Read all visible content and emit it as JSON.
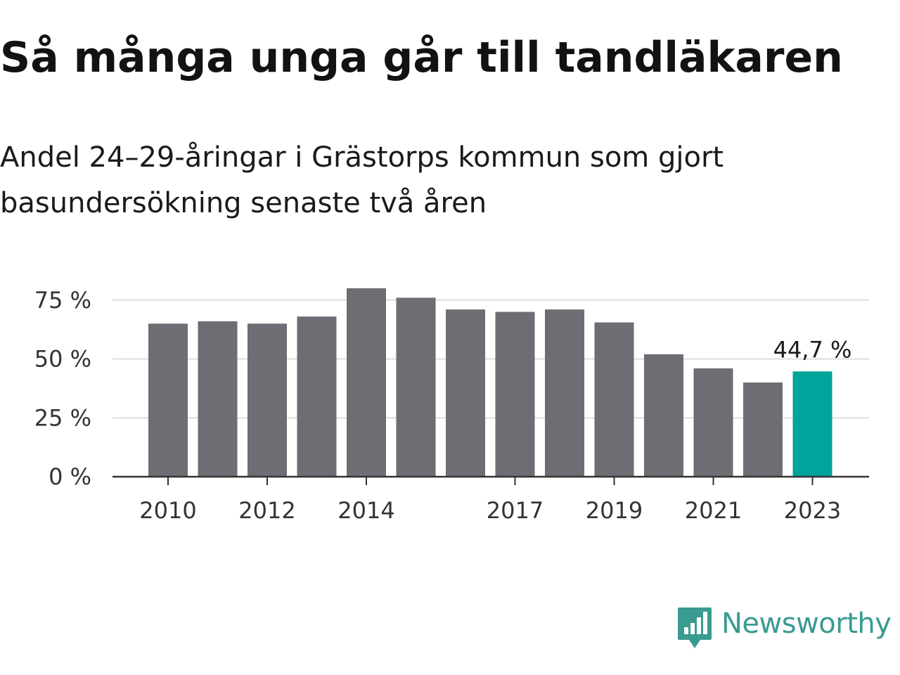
{
  "header": {
    "title": "Så många unga går till tandläkaren",
    "subtitle_lines": [
      "Andel 24–29-åringar i Grästorps kommun som gjort",
      "basundersökning senaste två åren"
    ]
  },
  "chart_data": {
    "type": "bar",
    "title": "Så många unga går till tandläkaren",
    "subtitle": "Andel 24–29-åringar i Grästorps kommun som gjort basundersökning senaste två åren",
    "xlabel": "",
    "ylabel": "",
    "categories": [
      2010,
      2011,
      2012,
      2013,
      2014,
      2015,
      2016,
      2017,
      2018,
      2019,
      2020,
      2021,
      2022,
      2023
    ],
    "values": [
      65,
      66,
      65,
      68,
      80,
      76,
      71,
      70,
      71,
      65.5,
      52,
      46,
      40,
      44.7
    ],
    "x_tick_labels": [
      "2010",
      "2012",
      "2014",
      "2017",
      "2019",
      "2021",
      "2023"
    ],
    "y_ticks": [
      0,
      25,
      50,
      75
    ],
    "y_tick_labels": [
      "0 %",
      "25 %",
      "50 %",
      "75 %"
    ],
    "ylim": [
      0,
      80
    ],
    "grid": true,
    "highlight_label": "44,7 %",
    "colors": {
      "bar": "#6e6d73",
      "highlight": "#00a49a",
      "grid": "#dddddd",
      "axis": "#333333"
    }
  },
  "brand": {
    "name": "Newsworthy",
    "icon": "newsworthy-logo-icon",
    "color": "#3a9b90"
  }
}
